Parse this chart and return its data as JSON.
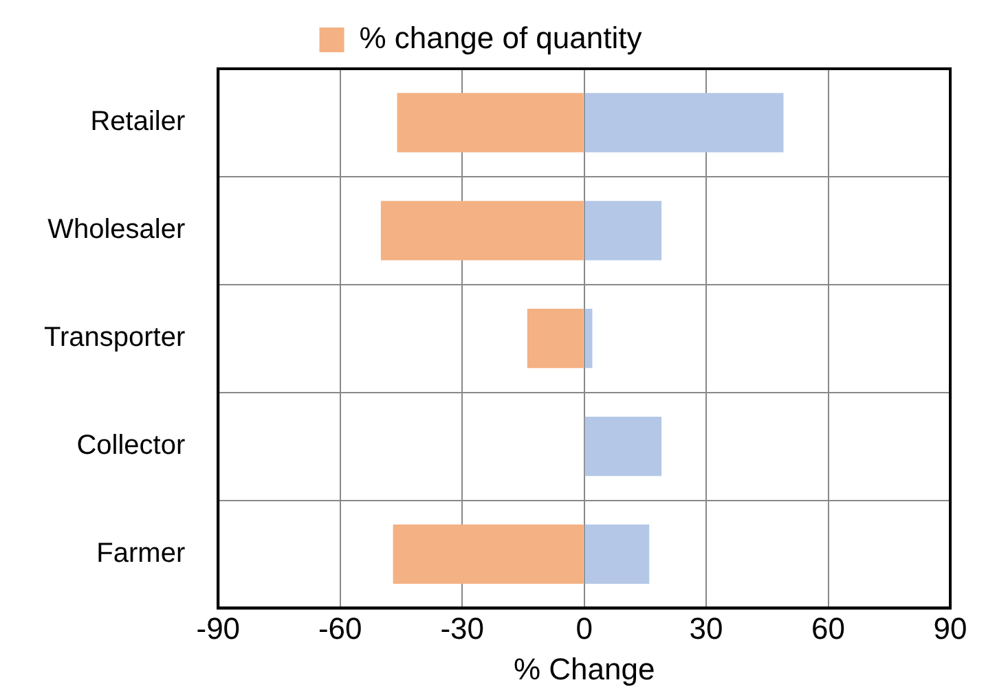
{
  "chart_data": {
    "type": "bar",
    "orientation": "horizontal",
    "stacked": true,
    "xlabel": "% Change",
    "categories": [
      "Retailer",
      "Wholesaler",
      "Transporter",
      "Collector",
      "Farmer"
    ],
    "series": [
      {
        "name": "% change of quantity",
        "color": "#f4b183",
        "values": [
          -46,
          -50,
          -14,
          null,
          -47
        ]
      },
      {
        "color": "#b4c7e7",
        "values": [
          49,
          19,
          2,
          19,
          16
        ]
      }
    ],
    "xlim": [
      -90,
      90
    ],
    "xticks": [
      -90,
      -60,
      -30,
      0,
      30,
      60,
      90
    ],
    "grid": true,
    "legend": "top"
  }
}
